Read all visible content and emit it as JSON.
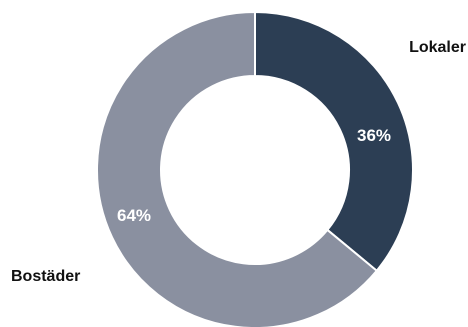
{
  "chart_data": {
    "type": "pie",
    "donut": true,
    "start_angle": "12 o'clock",
    "direction": "clockwise",
    "unit": "%",
    "slices": [
      {
        "name": "Lokaler",
        "value": 36,
        "label": "36%",
        "color": "#2c3e54"
      },
      {
        "name": "Bostäder",
        "value": 64,
        "label": "64%",
        "color": "#8a90a0"
      }
    ],
    "background": "#ffffff",
    "separator_color": "#ffffff"
  }
}
